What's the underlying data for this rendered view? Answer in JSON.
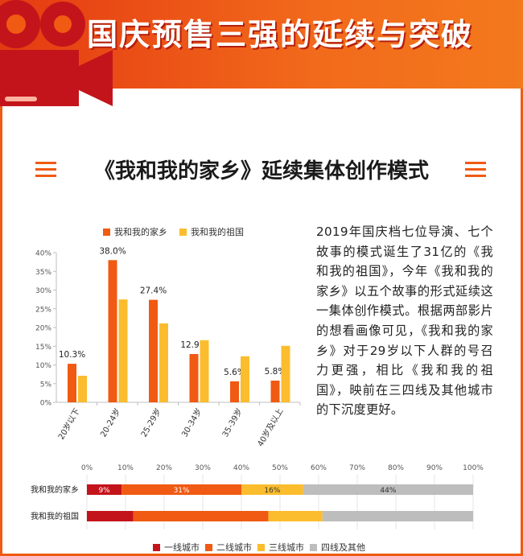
{
  "header": {
    "title": "国庆预售三强的延续与突破"
  },
  "subheading": {
    "text": "《我和我的家乡》延续集体创作模式"
  },
  "description": "2019年国庆档七位导演、七个故事的模式诞生了31亿的《我和我的祖国》，今年《我和我的家乡》以五个故事的形式延续这一集体创作模式。根据两部影片的想看画像可见，《我和我的家乡》对于29岁以下人群的号召力更强，相比《我和我的祖国》，映前在三四线及其他城市的下沉度更好。",
  "colors": {
    "accent": "#f05a12",
    "series1": "#f05a12",
    "series2": "#fbbd2e",
    "tier1": "#c4141b",
    "tier2": "#f05a12",
    "tier3": "#fbbd2e",
    "tier4": "#bdbdbd"
  },
  "chart_data": [
    {
      "type": "bar",
      "categories": [
        "20岁以下",
        "20-24岁",
        "25-29岁",
        "30-34岁",
        "35-39岁",
        "40岁及以上"
      ],
      "series": [
        {
          "name": "我和我的家乡",
          "values": [
            10.3,
            38.0,
            27.4,
            12.9,
            5.6,
            5.8
          ],
          "labels": [
            "10.3%",
            "38.0%",
            "27.4%",
            "12.9%",
            "5.6%",
            "5.8%"
          ]
        },
        {
          "name": "我和我的祖国",
          "values": [
            7.1,
            27.5,
            21.1,
            16.6,
            12.3,
            15.1
          ]
        }
      ],
      "yticks": [
        "0%",
        "5%",
        "10%",
        "15%",
        "20%",
        "25%",
        "30%",
        "35%",
        "40%"
      ],
      "ylim": [
        0,
        40
      ],
      "grid": false,
      "legend": "top"
    },
    {
      "type": "bar",
      "orientation": "horizontal-stacked",
      "categories": [
        "我和我的家乡",
        "我和我的祖国"
      ],
      "series": [
        {
          "name": "一线城市",
          "values": [
            9,
            12
          ]
        },
        {
          "name": "二线城市",
          "values": [
            31,
            35
          ]
        },
        {
          "name": "三线城市",
          "values": [
            16,
            14
          ]
        },
        {
          "name": "四线及其他",
          "values": [
            44,
            39
          ]
        }
      ],
      "segment_labels": [
        [
          "9%",
          "31%",
          "16%",
          "44%"
        ],
        [
          "",
          "",
          "",
          ""
        ]
      ],
      "xticks": [
        "0%",
        "10%",
        "20%",
        "30%",
        "40%",
        "50%",
        "60%",
        "70%",
        "80%",
        "90%",
        "100%"
      ],
      "xlim": [
        0,
        100
      ],
      "grid": true,
      "legend": "bottom"
    }
  ]
}
